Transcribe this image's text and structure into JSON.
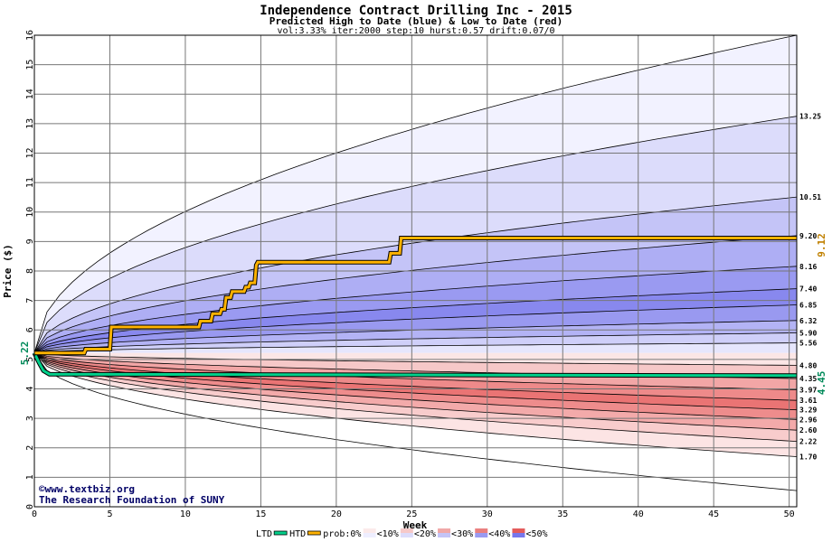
{
  "chart_data": {
    "type": "area",
    "title": "Independence Contract Drilling Inc - 2015",
    "subtitle": "Predicted High to Date (blue) &  Low to Date (red)",
    "params": "vol:3.33% iter:2000 step:10 hurst:0.57 drift:0.07/0",
    "xlabel": "Week",
    "ylabel": "Price ($)",
    "xlim": [
      0,
      50.5
    ],
    "ylim": [
      0,
      16
    ],
    "x_ticks": [
      0,
      5,
      10,
      15,
      20,
      25,
      30,
      35,
      40,
      45,
      50
    ],
    "y_ticks": [
      0,
      1,
      2,
      3,
      4,
      5,
      6,
      7,
      8,
      9,
      10,
      11,
      12,
      13,
      14,
      15,
      16
    ],
    "grid": true,
    "start_price": 5.22,
    "start_label": "5.22",
    "high_percentiles": [
      {
        "end": 16.0,
        "fill": "#f2f2ff"
      },
      {
        "end": 13.25,
        "label": "13.25",
        "fill": "#dcdcfb"
      },
      {
        "end": 10.51,
        "label": "10.51",
        "fill": "#c4c4f7"
      },
      {
        "end": 9.2,
        "label": "9.20",
        "fill": "#aeaef4"
      },
      {
        "end": 8.16,
        "label": "8.16",
        "fill": "#9a9af1"
      },
      {
        "end": 7.4,
        "label": "7.40",
        "fill": "#8888ee"
      },
      {
        "end": 6.85,
        "label": "6.85",
        "fill": "#9999f0"
      },
      {
        "end": 6.32,
        "label": "6.32",
        "fill": "#b3b3f5"
      },
      {
        "end": 5.9,
        "label": "5.90",
        "fill": "#cfcff9"
      },
      {
        "end": 5.56,
        "label": "5.56",
        "fill": "#e6e6fd"
      }
    ],
    "low_percentiles": [
      {
        "end": 4.8,
        "label": "4.80",
        "fill": "#fbe6e6"
      },
      {
        "end": 4.35,
        "label": "4.35",
        "fill": "#f6c8c8"
      },
      {
        "end": 3.97,
        "label": "3.97",
        "fill": "#f2a6a6"
      },
      {
        "end": 3.61,
        "label": "3.61",
        "fill": "#ee8a8a"
      },
      {
        "end": 3.29,
        "label": "3.29",
        "fill": "#ea7474"
      },
      {
        "end": 2.96,
        "label": "2.96",
        "fill": "#ee8c8c"
      },
      {
        "end": 2.6,
        "label": "2.60",
        "fill": "#f3aaaa"
      },
      {
        "end": 2.22,
        "label": "2.22",
        "fill": "#f8cccc"
      },
      {
        "end": 1.7,
        "label": "1.70",
        "fill": "#fce4e4"
      },
      {
        "end": 0.55,
        "fill": "#ffffff"
      }
    ],
    "series": [
      {
        "name": "HTD",
        "color": "#ffb300",
        "end_label": "9.12",
        "points": [
          [
            0,
            5.22
          ],
          [
            3.3,
            5.22
          ],
          [
            3.4,
            5.35
          ],
          [
            5.0,
            5.35
          ],
          [
            5.1,
            6.1
          ],
          [
            10.9,
            6.1
          ],
          [
            11.0,
            6.3
          ],
          [
            11.7,
            6.3
          ],
          [
            11.8,
            6.55
          ],
          [
            12.3,
            6.55
          ],
          [
            12.4,
            6.7
          ],
          [
            12.6,
            6.7
          ],
          [
            12.7,
            7.1
          ],
          [
            13.0,
            7.1
          ],
          [
            13.1,
            7.3
          ],
          [
            13.9,
            7.3
          ],
          [
            14.0,
            7.45
          ],
          [
            14.2,
            7.45
          ],
          [
            14.3,
            7.6
          ],
          [
            14.6,
            7.6
          ],
          [
            14.7,
            8.2
          ],
          [
            14.8,
            8.3
          ],
          [
            23.5,
            8.3
          ],
          [
            23.6,
            8.6
          ],
          [
            24.2,
            8.6
          ],
          [
            24.3,
            9.12
          ],
          [
            50.5,
            9.12
          ]
        ]
      },
      {
        "name": "LTD",
        "color": "#00d08a",
        "end_label": "4.45",
        "points": [
          [
            0,
            5.22
          ],
          [
            0.3,
            4.9
          ],
          [
            0.6,
            4.62
          ],
          [
            1.0,
            4.5
          ],
          [
            50.5,
            4.45
          ]
        ]
      }
    ],
    "annotations": [
      "©www.textbiz.org",
      "The Research Foundation of SUNY"
    ]
  },
  "legend": {
    "ltd": "LTD",
    "htd": "HTD",
    "prob": "prob:0%",
    "buckets": [
      "<10%",
      "<20%",
      "<30%",
      "<40%",
      "<50%"
    ],
    "colors": {
      "ltd": "#00d08a",
      "htd": "#ffb300",
      "buckets": [
        [
          "#fbeaea",
          "#eeeeff"
        ],
        [
          "#f6c9c9",
          "#dcdcfb"
        ],
        [
          "#f0a8a8",
          "#c4c4f7"
        ],
        [
          "#ea8080",
          "#9a9af1"
        ],
        [
          "#e45c5c",
          "#7777ec"
        ]
      ]
    }
  }
}
